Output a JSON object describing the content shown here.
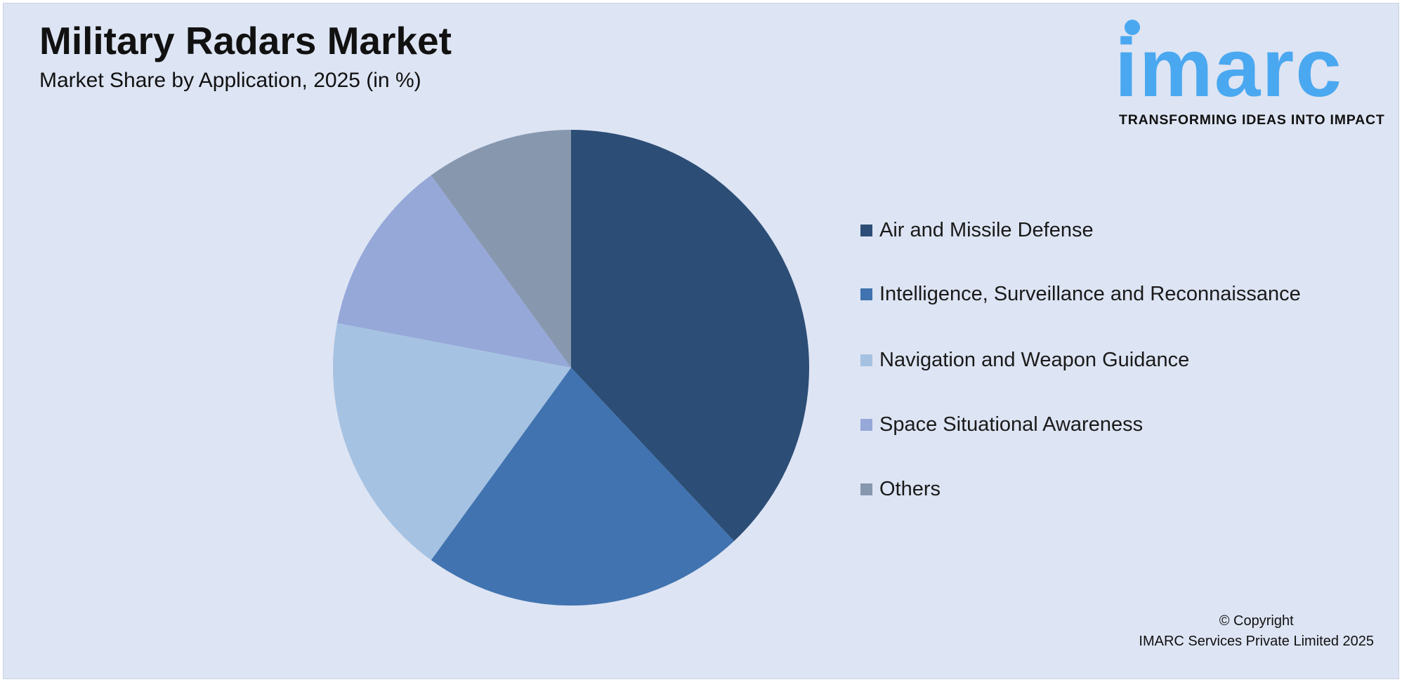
{
  "header": {
    "title": "Military Radars Market",
    "subtitle": "Market Share by Application, 2025 (in %)"
  },
  "logo": {
    "text": "imarc",
    "tagline": "TRANSFORMING IDEAS INTO IMPACT",
    "color": "#4aa8f0"
  },
  "copyright": {
    "line1": "© Copyright",
    "line2": "IMARC Services Private Limited 2025"
  },
  "chart_data": {
    "type": "pie",
    "title": "Military Radars Market",
    "subtitle": "Market Share by Application, 2025 (in %)",
    "legend_position": "right",
    "categories": [
      "Air and Missile Defense",
      "Intelligence, Surveillance and Reconnaissance",
      "Navigation and Weapon Guidance",
      "Space Situational Awareness",
      "Others"
    ],
    "values": [
      38,
      22,
      18,
      12,
      10
    ],
    "colors": [
      "#2c4d75",
      "#4073b0",
      "#a6c2e2",
      "#95a8d8",
      "#8797ae"
    ]
  }
}
